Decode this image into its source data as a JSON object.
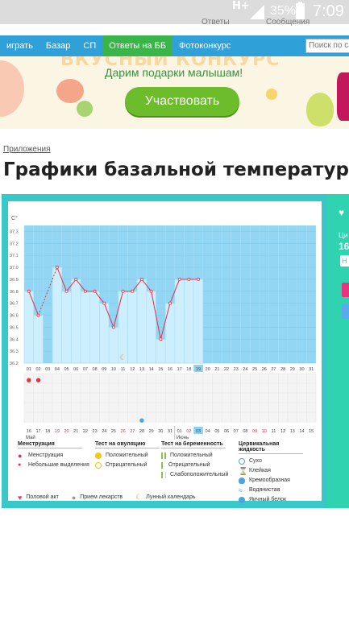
{
  "status_bar": {
    "network": "H+",
    "battery": "35%",
    "time": "7:09",
    "answers_link": "Ответы",
    "messages_link": "Сообщения"
  },
  "nav": {
    "items": [
      "играть",
      "Базар",
      "СП",
      "Ответы на ББ",
      "Фотоконкурс"
    ],
    "active_index": 3,
    "search_placeholder": "Поиск по сайт"
  },
  "banner": {
    "title": "ВКУСНЫЙ КОНКУРС",
    "subtitle": "Дарим подарки малышам!",
    "cta": "Участвовать"
  },
  "breadcrumb": "Приложения",
  "page_title": "Графики базальной температуры",
  "side_panel": {
    "label": "Ци",
    "value": "16",
    "button": "Н"
  },
  "chart_data": {
    "type": "line",
    "ylabel": "C°",
    "ylim": [
      36.2,
      37.4
    ],
    "y_ticks": [
      "37.3",
      "37.2",
      "37.1",
      "37.0",
      "36.9",
      "36.8",
      "36.7",
      "36.6",
      "36.5",
      "36.4",
      "36.3",
      "36.2"
    ],
    "x_top_labels": [
      "01",
      "02",
      "03",
      "04",
      "05",
      "06",
      "07",
      "08",
      "09",
      "10",
      "11",
      "12",
      "13",
      "14",
      "15",
      "16",
      "17",
      "18",
      "19",
      "20",
      "21",
      "22",
      "23",
      "24",
      "25",
      "26",
      "27",
      "28",
      "29",
      "30",
      "31"
    ],
    "x_bottom_labels": [
      "16",
      "17",
      "18",
      "19",
      "20",
      "21",
      "22",
      "23",
      "24",
      "25",
      "26",
      "27",
      "28",
      "29",
      "30",
      "31",
      "01",
      "02",
      "03",
      "04",
      "05",
      "06",
      "07",
      "08",
      "09",
      "10",
      "11",
      "12",
      "13",
      "14",
      "15"
    ],
    "month_labels": [
      "Май",
      "Июнь"
    ],
    "highlight_top_day": "19",
    "highlight_bottom_day": "03",
    "series": [
      {
        "values": [
          36.8,
          36.6,
          null,
          37.0,
          36.8,
          36.9,
          36.8,
          36.8,
          36.7,
          36.5,
          36.8,
          36.8,
          36.9,
          36.8,
          36.4,
          36.7,
          36.9,
          36.9,
          36.9,
          null,
          null,
          null,
          null,
          null,
          null,
          null,
          null,
          null,
          null,
          null,
          null
        ]
      }
    ],
    "menstruation_days": [
      0,
      1
    ],
    "moon_day": 10,
    "cervical_drop_day": 12,
    "grid": true
  },
  "legend": {
    "menstruation": {
      "header": "Менструация",
      "items": [
        "Менструация",
        "Небольшие выделения"
      ]
    },
    "ovulation_test": {
      "header": "Тест на овуляцию",
      "items": [
        "Положительный",
        "Отрицательный"
      ]
    },
    "pregnancy_test": {
      "header": "Тест на беременность",
      "items": [
        "Положительный",
        "Отрицательный",
        "Слабоположительный"
      ]
    },
    "cervical_fluid": {
      "header": "Цервикальная жидкость",
      "items": [
        "Сухо",
        "Клейкая",
        "Кремообразная",
        "Водянистая",
        "Яичный белок"
      ]
    },
    "bottom": [
      "Половой акт",
      "Прием лекарств",
      "Лунный календарь"
    ]
  },
  "colors": {
    "nav": "#2fa0d8",
    "nav_active": "#3ab54a",
    "chart_sky": "#93d6f4",
    "bar_fill": "#cdeefc",
    "line": "#e0304a",
    "frame": "#38c8ca"
  }
}
